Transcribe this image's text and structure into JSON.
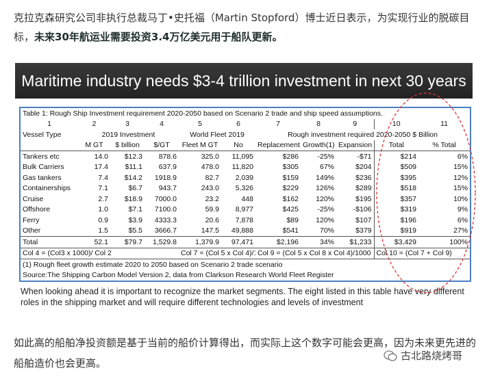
{
  "intro": {
    "text": "克拉克森研究公司非执行总裁马丁•史托福（Martin Stopford）博士近日表示，为实现行业的脱碳目标，",
    "highlight": "未来30年航运业需要投资3.4万亿美元用于船队更新。"
  },
  "banner": "Maritime industry needs $3-4 trillion investment in next 30 years",
  "table": {
    "caption": "Table 1: Rough Ship Investment requirement 2020-2050 based on Scenario 2 trade and ship speed assumptions.",
    "column_numbers": [
      "1",
      "2",
      "3",
      "4",
      "5",
      "6",
      "7",
      "8",
      "9",
      "10",
      "11"
    ],
    "group_headers": {
      "vessel_type": "Vessel Type",
      "investment_2019": "2019 Investment",
      "world_fleet": "World Fleet 2019",
      "rough_investment": "Rough investment required 2020-2050 $ Billion"
    },
    "headers": [
      "M GT",
      "$ billion",
      "$/GT",
      "Fleet M GT",
      "No",
      "Replacement",
      "Growth(1)",
      "Expansion",
      "Total",
      "% Total"
    ],
    "rows": [
      [
        "Tankers etc",
        "14.0",
        "$12.3",
        "878.6",
        "325.0",
        "11,095",
        "$286",
        "-25%",
        "-$71",
        "$214",
        "6%"
      ],
      [
        "Bulk Carriers",
        "17.4",
        "$11.1",
        "637.9",
        "478.0",
        "11,820",
        "$305",
        "67%",
        "$204",
        "$509",
        "15%"
      ],
      [
        "Gas tankers",
        "7.4",
        "$14.2",
        "1918.9",
        "82.7",
        "2,039",
        "$159",
        "149%",
        "$236",
        "$395",
        "12%"
      ],
      [
        "Containerships",
        "7.1",
        "$6.7",
        "943.7",
        "243.0",
        "5,326",
        "$229",
        "126%",
        "$289",
        "$518",
        "15%"
      ],
      [
        "Cruise",
        "2.7",
        "$18.9",
        "7000.0",
        "23.2",
        "448",
        "$162",
        "120%",
        "$195",
        "$357",
        "10%"
      ],
      [
        "Offshore",
        "1.0",
        "$7.1",
        "7100.0",
        "59.9",
        "8,977",
        "$425",
        "-25%",
        "-$106",
        "$319",
        "9%"
      ],
      [
        "Ferry",
        "0.9",
        "$3.9",
        "4333.3",
        "20.6",
        "7,878",
        "$89",
        "120%",
        "$107",
        "$196",
        "6%"
      ],
      [
        "Other",
        "1.5",
        "$5.5",
        "3666.7",
        "147.5",
        "49,888",
        "$541",
        "70%",
        "$379",
        "$919",
        "27%"
      ]
    ],
    "total": [
      "Total",
      "52.1",
      "$79.7",
      "1,529.8",
      "1,379.9",
      "97,471",
      "$2,196",
      "34%",
      "$1,233",
      "$3,429",
      "100%"
    ],
    "formulas": [
      "Col 4 = (Col3 x 1000)/ Col 2",
      "Col 7 = (Col 5 x Col 4)/1,000",
      "Col 9 = (Col 5 x Col 8 x Col 4)/1000",
      "Col 10 = (Col 7 + Col 9)"
    ],
    "note": "(1) Rough fleet growth estimate 2020 to 2050 based on Scenario 2 trade scenario",
    "source": "Source:The Shipping Carbon Model Version 2, data from Clarkson Research World Fleet Register"
  },
  "description": "When looking ahead it is important to recognize the market segments. The eight listed in this table have very different roles in the shipping market and will require different technologies and levels of investment",
  "outro": "如此高的船舶净投资额是基于当前的船价计算得出，而实际上这个数字可能会更高，因为未来更先进的船舶造价也会更高。",
  "watermark": "古北路烧烤哥"
}
